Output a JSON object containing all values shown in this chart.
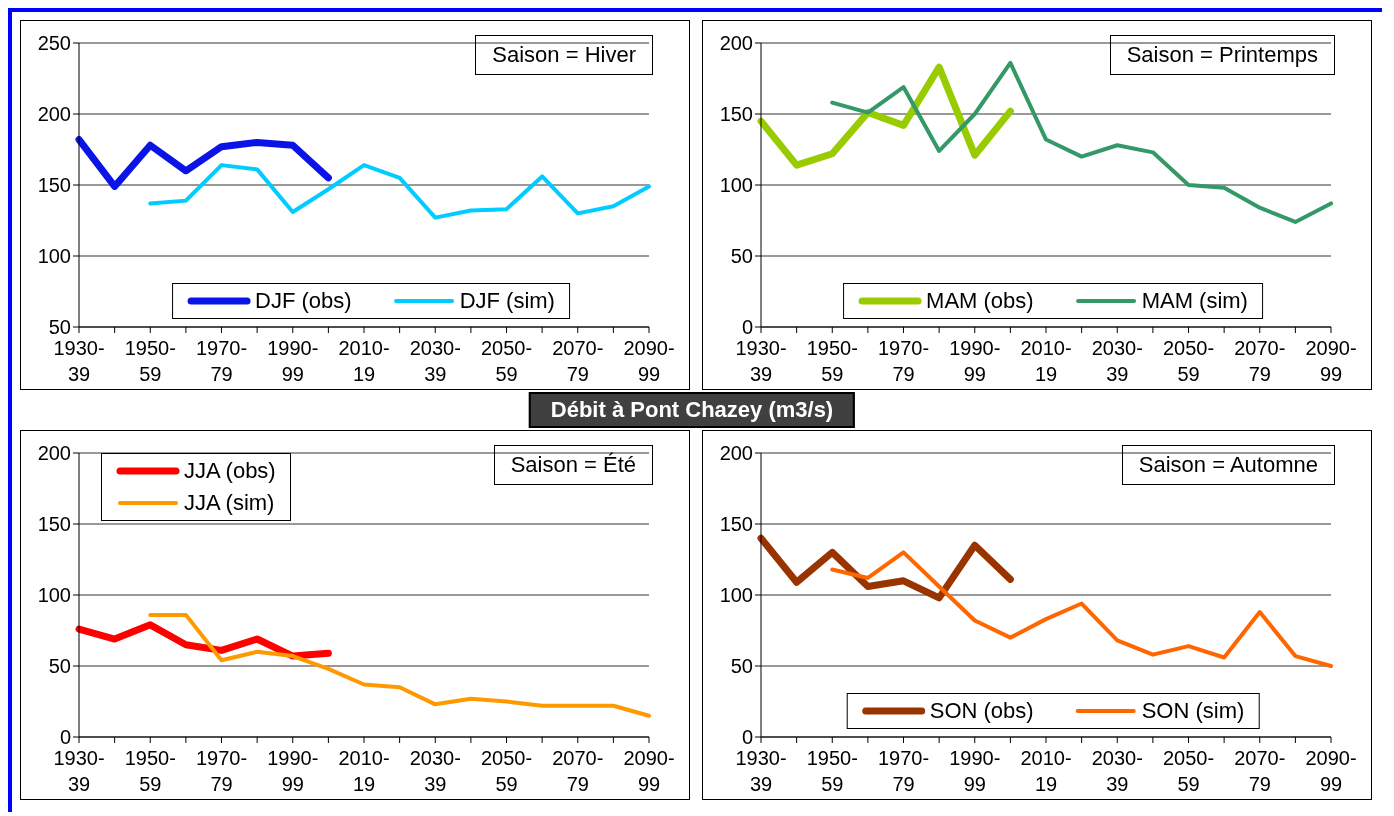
{
  "chart_data": [
    {
      "type": "line",
      "title": "Débit à Pont Chazey (m3/s)",
      "annotations": [
        "Saison = Hiver"
      ],
      "categories": [
        "1930-39",
        null,
        "1950-59",
        null,
        "1970-79",
        null,
        "1990-99",
        null,
        "2010-19",
        null,
        "2030-39",
        null,
        "2050-59",
        null,
        "2070-79",
        null,
        "2090-99"
      ],
      "ylim": [
        50,
        250
      ],
      "yticks": [
        50,
        100,
        150,
        200,
        250
      ],
      "grid": "y",
      "legend": "bottom",
      "marker": "none",
      "series": [
        {
          "name": "DJF (obs)",
          "color": "#0a14e6",
          "values": [
            182,
            149,
            178,
            160,
            177,
            180,
            178,
            155,
            null,
            null,
            null,
            null,
            null,
            null,
            null,
            null,
            null
          ]
        },
        {
          "name": "DJF (sim)",
          "color": "#00ccff",
          "values": [
            null,
            null,
            137,
            139,
            164,
            161,
            131,
            147,
            164,
            155,
            127,
            132,
            133,
            156,
            130,
            135,
            149
          ]
        }
      ]
    },
    {
      "type": "line",
      "annotations": [
        "Saison = Printemps"
      ],
      "categories": [
        "1930-39",
        null,
        "1950-59",
        null,
        "1970-79",
        null,
        "1990-99",
        null,
        "2010-19",
        null,
        "2030-39",
        null,
        "2050-59",
        null,
        "2070-79",
        null,
        "2090-99"
      ],
      "ylim": [
        0,
        200
      ],
      "yticks": [
        0,
        50,
        100,
        150,
        200
      ],
      "grid": "y",
      "legend": "bottom",
      "marker": "none",
      "series": [
        {
          "name": "MAM (obs)",
          "color": "#99cc00",
          "values": [
            145,
            114,
            122,
            151,
            142,
            183,
            121,
            152,
            null,
            null,
            null,
            null,
            null,
            null,
            null,
            null,
            null
          ]
        },
        {
          "name": "MAM (sim)",
          "color": "#339966",
          "values": [
            null,
            null,
            158,
            151,
            169,
            124,
            150,
            186,
            132,
            120,
            128,
            123,
            100,
            98,
            84,
            74,
            87
          ]
        }
      ]
    },
    {
      "type": "line",
      "annotations": [
        "Saison = Été"
      ],
      "categories": [
        "1930-39",
        null,
        "1950-59",
        null,
        "1970-79",
        null,
        "1990-99",
        null,
        "2010-19",
        null,
        "2030-39",
        null,
        "2050-59",
        null,
        "2070-79",
        null,
        "2090-99"
      ],
      "ylim": [
        0,
        200
      ],
      "yticks": [
        0,
        50,
        100,
        150,
        200
      ],
      "grid": "y",
      "legend": "top left",
      "marker": "none",
      "series": [
        {
          "name": "JJA (obs)",
          "color": "#ff0000",
          "values": [
            76,
            69,
            79,
            65,
            61,
            69,
            57,
            59,
            null,
            null,
            null,
            null,
            null,
            null,
            null,
            null,
            null
          ]
        },
        {
          "name": "JJA (sim)",
          "color": "#ff9900",
          "values": [
            null,
            null,
            86,
            86,
            54,
            60,
            57,
            48,
            37,
            35,
            23,
            27,
            25,
            22,
            22,
            22,
            15
          ]
        }
      ]
    },
    {
      "type": "line",
      "annotations": [
        "Saison = Automne"
      ],
      "categories": [
        "1930-39",
        null,
        "1950-59",
        null,
        "1970-79",
        null,
        "1990-99",
        null,
        "2010-19",
        null,
        "2030-39",
        null,
        "2050-59",
        null,
        "2070-79",
        null,
        "2090-99"
      ],
      "ylim": [
        0,
        200
      ],
      "yticks": [
        0,
        50,
        100,
        150,
        200
      ],
      "grid": "y",
      "legend": "bottom",
      "marker": "none",
      "series": [
        {
          "name": "SON (obs)",
          "color": "#993300",
          "values": [
            140,
            109,
            130,
            106,
            110,
            98,
            135,
            111,
            null,
            null,
            null,
            null,
            null,
            null,
            null,
            null,
            null
          ]
        },
        {
          "name": "SON (sim)",
          "color": "#ff6600",
          "values": [
            null,
            null,
            118,
            112,
            130,
            106,
            82,
            70,
            83,
            94,
            68,
            58,
            64,
            56,
            88,
            57,
            50
          ]
        }
      ]
    }
  ]
}
